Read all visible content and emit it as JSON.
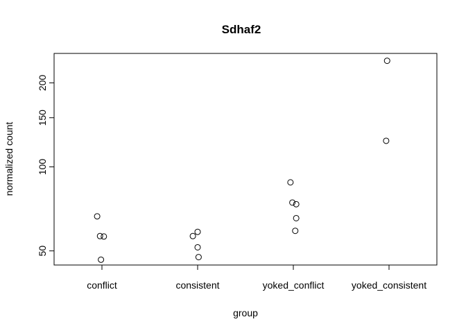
{
  "chart_data": {
    "type": "scatter",
    "title": "Sdhaf2",
    "xlabel": "group",
    "ylabel": "normalized count",
    "y_scale": "log",
    "ylim": [
      44.5,
      255
    ],
    "categories": [
      "conflict",
      "consistent",
      "yoked_conflict",
      "yoked_consistent"
    ],
    "y_ticks": [
      50,
      100,
      150,
      200
    ],
    "points": [
      {
        "category": "conflict",
        "jitter": -0.05,
        "y": 66.5
      },
      {
        "category": "conflict",
        "jitter": -0.02,
        "y": 56.5
      },
      {
        "category": "conflict",
        "jitter": 0.02,
        "y": 56.3
      },
      {
        "category": "conflict",
        "jitter": -0.01,
        "y": 46.5
      },
      {
        "category": "consistent",
        "jitter": 0.0,
        "y": 58.5
      },
      {
        "category": "consistent",
        "jitter": -0.05,
        "y": 56.5
      },
      {
        "category": "consistent",
        "jitter": 0.0,
        "y": 51.5
      },
      {
        "category": "consistent",
        "jitter": 0.01,
        "y": 47.5
      },
      {
        "category": "yoked_conflict",
        "jitter": -0.03,
        "y": 88
      },
      {
        "category": "yoked_conflict",
        "jitter": -0.01,
        "y": 74.5
      },
      {
        "category": "yoked_conflict",
        "jitter": 0.03,
        "y": 73.5
      },
      {
        "category": "yoked_conflict",
        "jitter": 0.03,
        "y": 65.5
      },
      {
        "category": "yoked_conflict",
        "jitter": 0.02,
        "y": 59
      },
      {
        "category": "yoked_consistent",
        "jitter": -0.02,
        "y": 240
      },
      {
        "category": "yoked_consistent",
        "jitter": -0.03,
        "y": 124
      }
    ]
  }
}
